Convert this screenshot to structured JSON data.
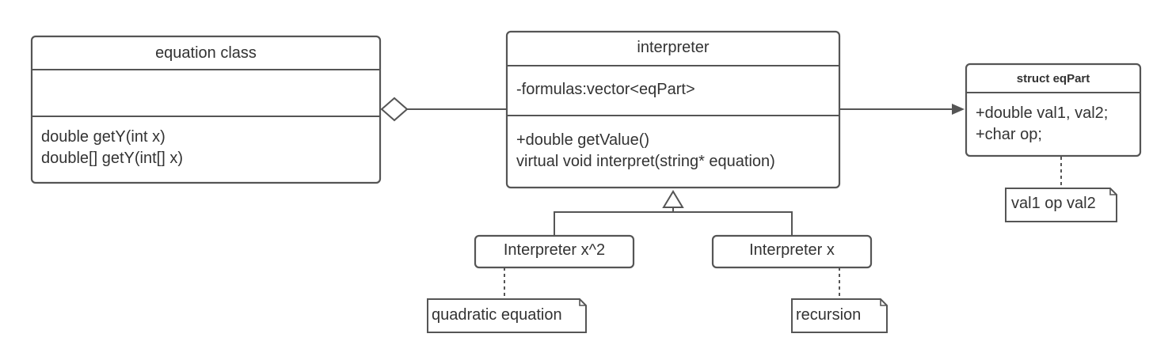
{
  "classes": {
    "equation": {
      "title": "equation class",
      "methods": [
        "double getY(int x)",
        "double[] getY(int[] x)"
      ]
    },
    "interpreter": {
      "title": "interpreter",
      "attributes": [
        "-formulas:vector<eqPart>"
      ],
      "methods": [
        "+double getValue()",
        "virtual void interpret(string* equation)"
      ]
    },
    "eq_part": {
      "title": "struct eqPart",
      "attributes": [
        "+double val1, val2;",
        "+char op;"
      ]
    },
    "interp_x2": {
      "title": "Interpreter x^2"
    },
    "interp_x": {
      "title": "Interpreter x"
    }
  },
  "notes": {
    "val_note": "val1 op val2",
    "quadratic_note": "quadratic equation",
    "recursion_note": "recursion"
  }
}
